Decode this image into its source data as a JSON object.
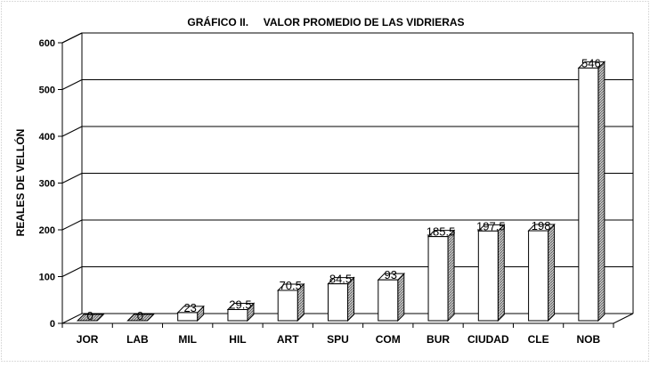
{
  "chart_data": {
    "type": "bar",
    "title": "GRÁFICO II.     VALOR PROMEDIO DE LAS VIDRIERAS",
    "xlabel": "",
    "ylabel": "REALES DE VELLÓN",
    "ylim": [
      0,
      600
    ],
    "yticks": [
      "0",
      "100",
      "200",
      "300",
      "400",
      "500",
      "600"
    ],
    "grid": true,
    "legend": "none",
    "categories": [
      "JOR",
      "LAB",
      "MIL",
      "HIL",
      "ART",
      "SPU",
      "COM",
      "BUR",
      "CIUDAD",
      "CLE",
      "NOB"
    ],
    "values": [
      0,
      0,
      23,
      29.5,
      70.5,
      84.5,
      93,
      185.5,
      197.5,
      198,
      546
    ],
    "data_labels": [
      "0",
      "0",
      "23",
      "29.5",
      "70.5",
      "84.5",
      "93",
      "185.5",
      "197.5",
      "198",
      "546"
    ],
    "colors": {
      "bar_front": "#ffffff",
      "bar_side": "#9a9a9a",
      "outline": "#000000",
      "frame_dots": "#b8b8b8"
    }
  }
}
